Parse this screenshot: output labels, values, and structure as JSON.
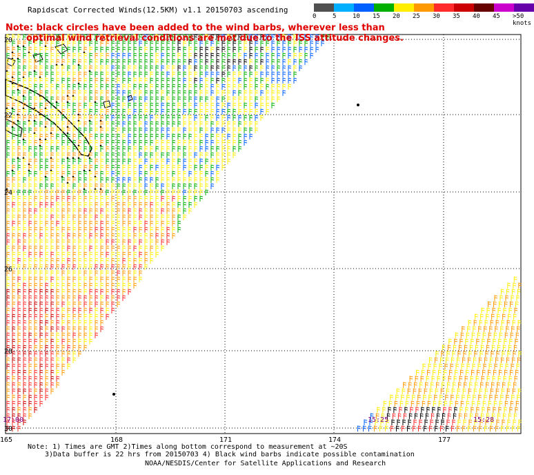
{
  "title": "Rapidscat Corrected Winds(12.5KM) v1.1 20150703 ascending",
  "note": {
    "line1": "Note: black circles have been added to the wind barbs, wherever less than",
    "line2": "optimal wind retrieval conditions are met due to the ISS attitude changes."
  },
  "legend": {
    "colors": [
      "#505050",
      "#00b0ff",
      "#0060ff",
      "#00b000",
      "#ffee00",
      "#ff9900",
      "#ff2a2a",
      "#cc0000",
      "#660000",
      "#cc00cc",
      "#6600aa"
    ],
    "labels": [
      "0",
      "5",
      "10",
      "15",
      "20",
      "25",
      "30",
      "35",
      "40",
      "45",
      ">50 knots"
    ]
  },
  "axes": {
    "lon_labels": [
      "165",
      "168",
      "171",
      "174",
      "177"
    ],
    "lat_labels": [
      "20",
      "22",
      "24",
      "26",
      "28",
      "30"
    ]
  },
  "pass_times": [
    "17:00",
    "15:25",
    "15:28"
  ],
  "footer": {
    "line1": "Note: 1) Times are GMT 2)Times along bottom correspond to measurement at ~20S",
    "line2": "3)Data buffer is 22 hrs from 20150703 4) Black wind barbs indicate possible contamination",
    "line3": "NOAA/NESDIS/Center for Satellite Applications and Research"
  }
}
